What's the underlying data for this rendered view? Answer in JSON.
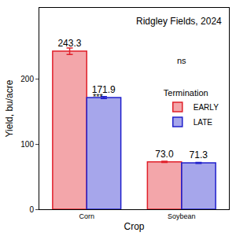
{
  "chart_data": {
    "type": "bar",
    "title": "Ridgley Fields, 2024",
    "x_label": "Crop",
    "y_label": "Yield, bu/acre",
    "legend_title": "Termination",
    "categories": [
      "Corn",
      "Soybean"
    ],
    "series": [
      {
        "name": "EARLY",
        "color": "#e0202a",
        "values": [
          243.3,
          73.0
        ],
        "value_labels": [
          "243.3",
          "73.0"
        ],
        "errors": [
          5,
          0.8
        ]
      },
      {
        "name": "LATE",
        "color": "#2020cc",
        "values": [
          171.9,
          71.3
        ],
        "value_labels": [
          "171.9",
          "71.3"
        ],
        "errors": [
          1.5,
          0.8
        ]
      }
    ],
    "annotations": [
      {
        "category": "Corn",
        "text": "***"
      },
      {
        "category": "Soybean",
        "text": "ns"
      }
    ],
    "ylim": [
      0,
      310
    ],
    "yticks": [
      0,
      100,
      200
    ],
    "grid": false,
    "legend": "right",
    "data_labels": true
  }
}
